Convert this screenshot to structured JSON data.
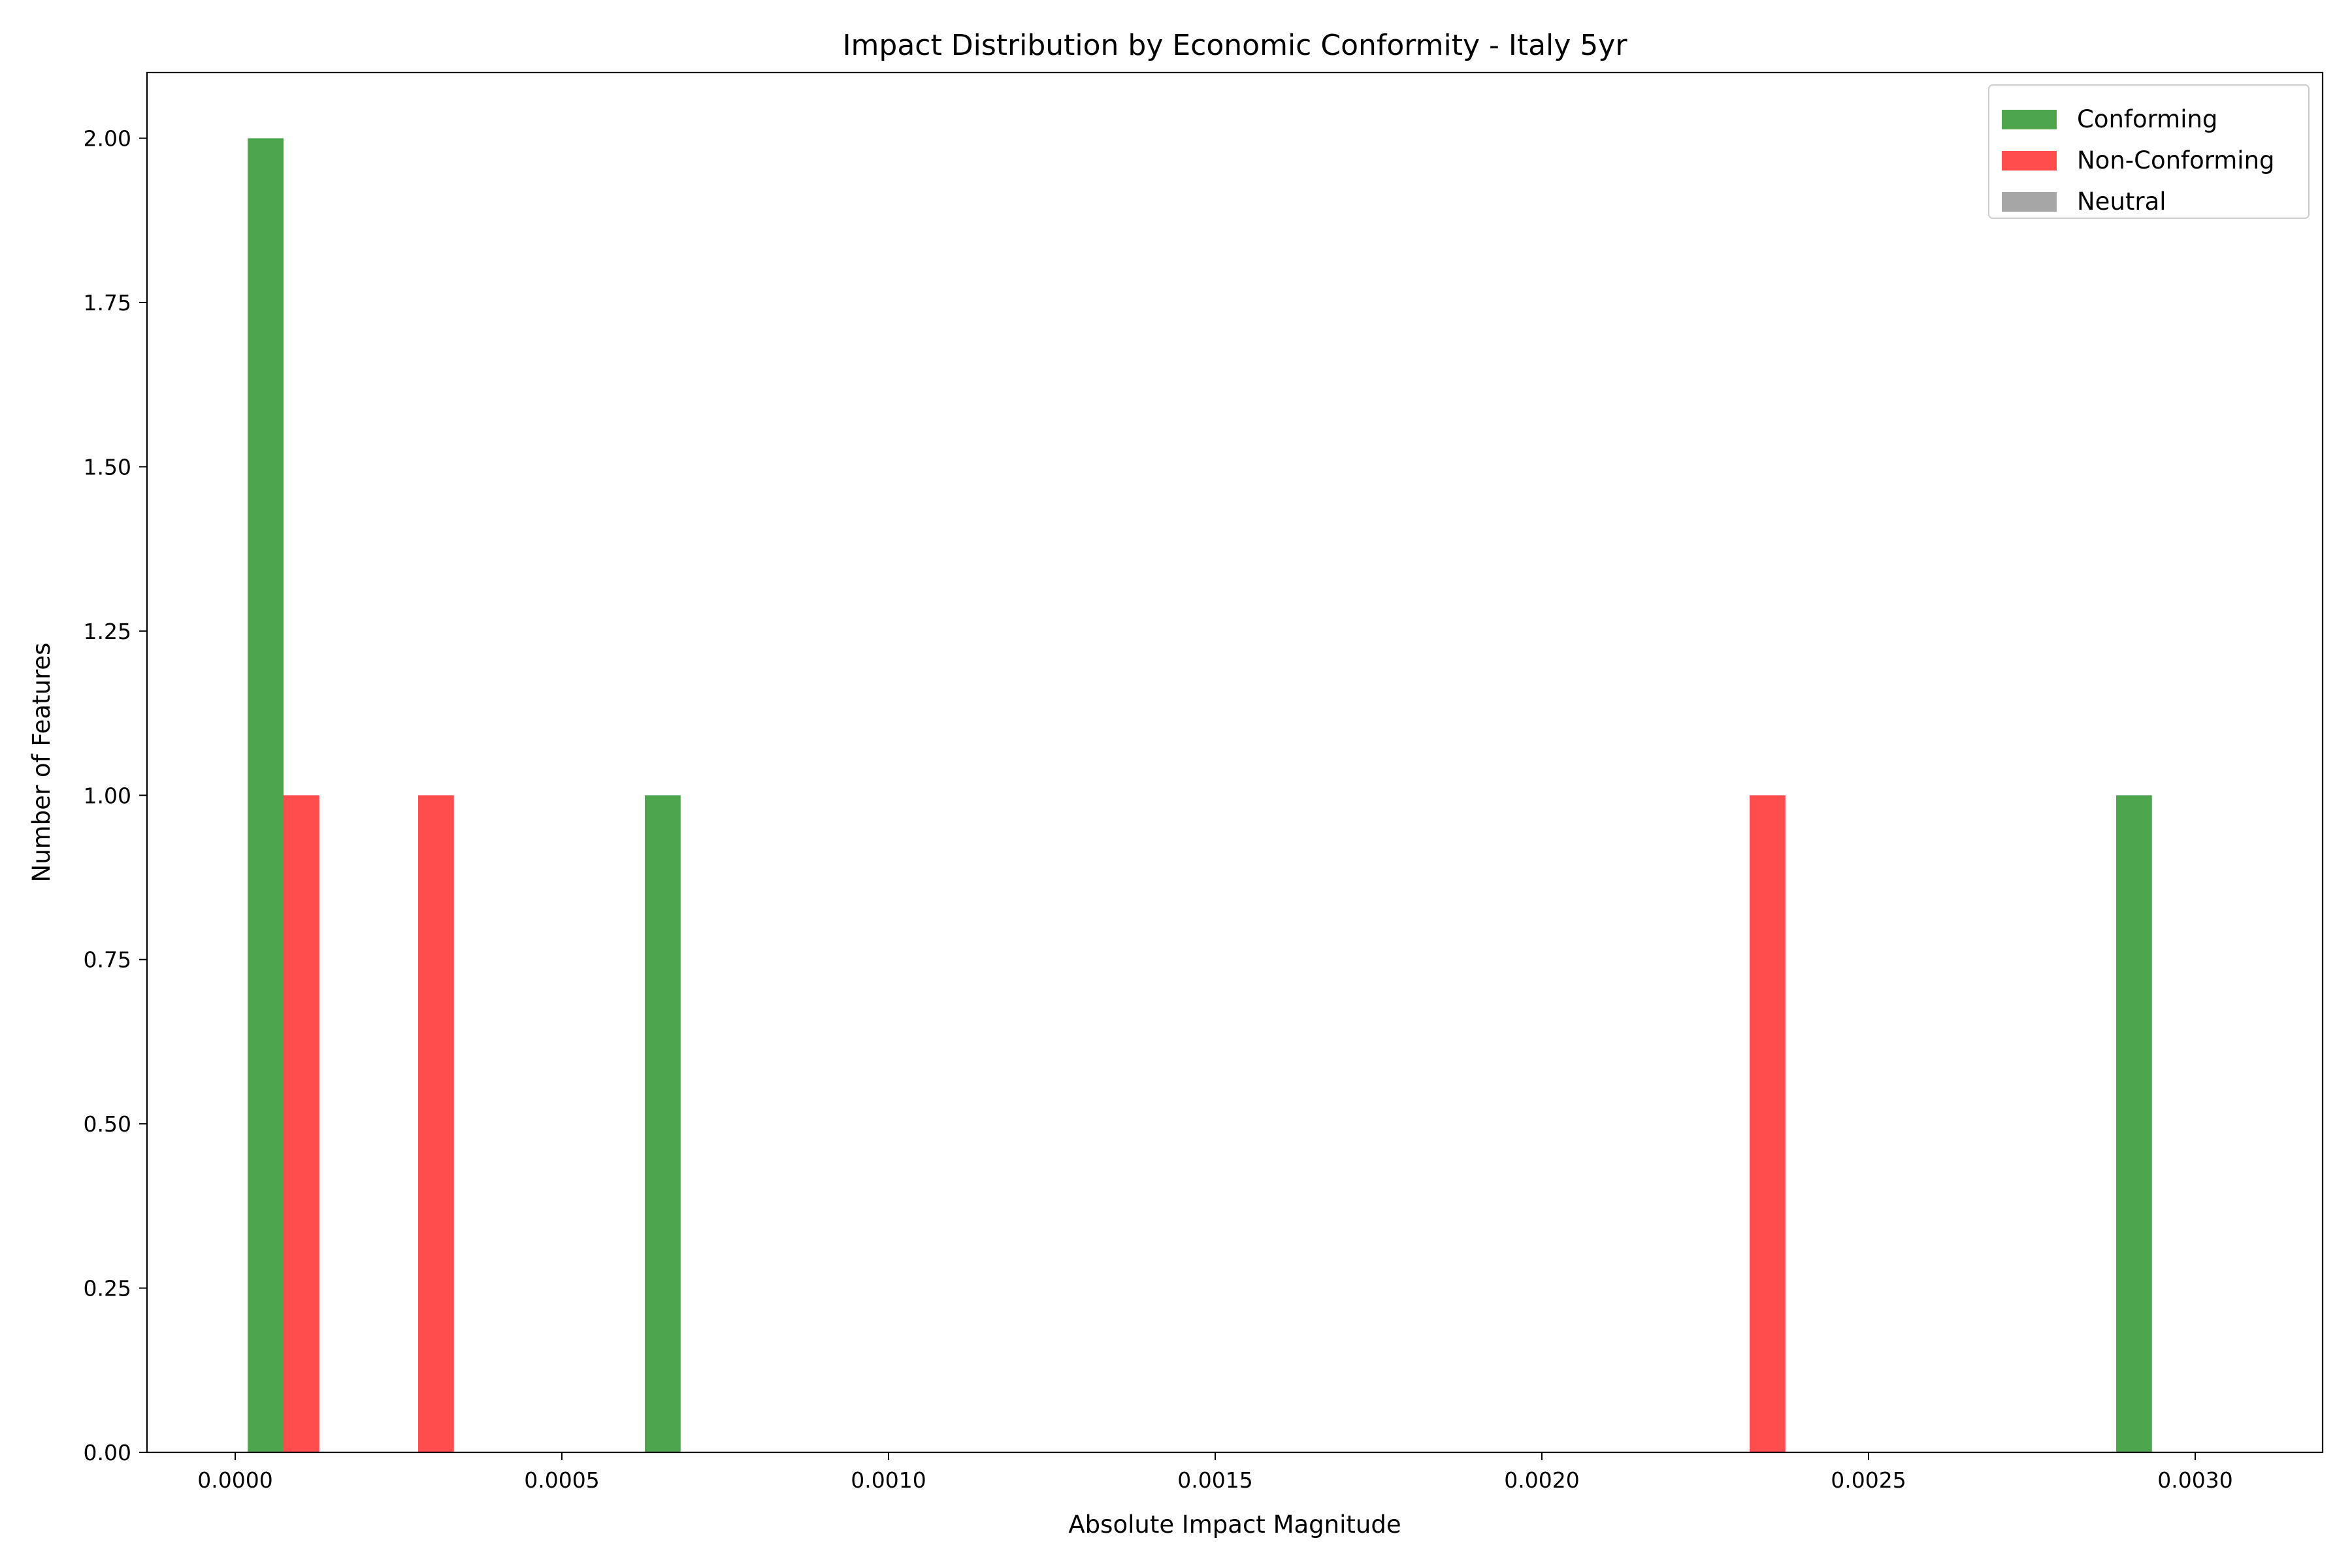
{
  "chart_data": {
    "type": "bar",
    "title": "Impact Distribution by Economic Conformity - Italy 5yr",
    "xlabel": "Absolute Impact Magnitude",
    "ylabel": "Number of Features",
    "xlim": [
      -0.000135,
      0.003195
    ],
    "ylim": [
      0,
      2.1
    ],
    "xticks": [
      0.0,
      0.0005,
      0.001,
      0.0015,
      0.002,
      0.0025,
      0.003
    ],
    "xtick_labels": [
      "0.0000",
      "0.0005",
      "0.0010",
      "0.0015",
      "0.0020",
      "0.0025",
      "0.0030"
    ],
    "yticks": [
      0,
      0.25,
      0.5,
      0.75,
      1.0,
      1.25,
      1.5,
      1.75,
      2.0
    ],
    "ytick_labels": [
      "0.00",
      "0.25",
      "0.50",
      "0.75",
      "1.00",
      "1.25",
      "1.50",
      "1.75",
      "2.00"
    ],
    "bar_width": 5.48e-05,
    "grid": false,
    "legend_position": "top-right",
    "series": [
      {
        "name": "Conforming",
        "color": "#4da64d",
        "bars": [
          {
            "x": 1.92e-05,
            "count": 2
          },
          {
            "x": 0.000627,
            "count": 1
          },
          {
            "x": 0.002879,
            "count": 1
          }
        ]
      },
      {
        "name": "Non-Conforming",
        "color": "#ff4d4d",
        "bars": [
          {
            "x": 7.4e-05,
            "count": 1
          },
          {
            "x": 0.00028,
            "count": 1
          },
          {
            "x": 0.002318,
            "count": 1
          }
        ]
      },
      {
        "name": "Neutral",
        "color": "#a6a6a6",
        "bars": []
      }
    ]
  }
}
